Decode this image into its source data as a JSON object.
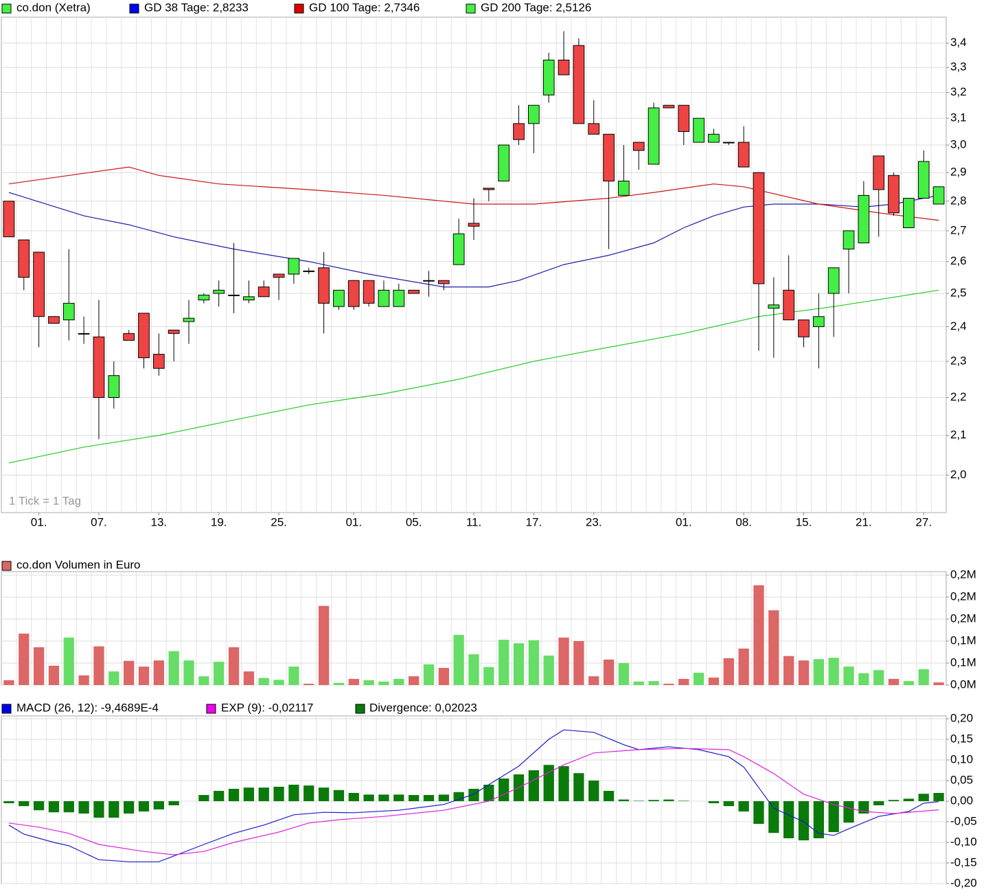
{
  "chart_data": [
    {
      "type": "candlestick",
      "legend": "co.don (Xetra)",
      "legend_color": "#44ee44",
      "up_color": "#44ee44",
      "down_color": "#ee4444",
      "annotation": "1 Tick = 1 Tag",
      "log": true,
      "grid": true,
      "open": [
        2.8,
        2.67,
        2.63,
        2.43,
        2.42,
        2.38,
        2.37,
        2.2,
        2.38,
        2.44,
        2.32,
        2.39,
        2.415,
        2.48,
        2.5,
        2.495,
        2.48,
        2.52,
        2.56,
        2.56,
        2.57,
        2.58,
        2.46,
        2.54,
        2.54,
        2.46,
        2.46,
        2.51,
        2.54,
        2.54,
        2.59,
        2.725,
        2.845,
        2.87,
        3.08,
        3.08,
        3.19,
        3.33,
        3.39,
        3.08,
        3.04,
        2.82,
        3.01,
        2.93,
        3.15,
        3.15,
        3.01,
        3.01,
        3.01,
        3.01,
        2.9,
        2.455,
        2.51,
        2.42,
        2.4,
        2.5,
        2.64,
        2.66,
        2.96,
        2.89,
        2.71,
        2.81,
        2.79
      ],
      "high": [
        2.8,
        2.67,
        2.63,
        2.43,
        2.64,
        2.43,
        2.48,
        2.3,
        2.39,
        2.44,
        2.38,
        2.39,
        2.48,
        2.5,
        2.54,
        2.66,
        2.54,
        2.54,
        2.56,
        2.61,
        2.58,
        2.63,
        2.51,
        2.54,
        2.54,
        2.54,
        2.53,
        2.51,
        2.57,
        2.54,
        2.74,
        2.81,
        2.845,
        3.0,
        3.15,
        3.15,
        3.36,
        3.45,
        3.42,
        3.17,
        3.04,
        3.0,
        3.01,
        3.16,
        3.15,
        3.15,
        3.1,
        3.06,
        3.01,
        3.07,
        2.9,
        2.55,
        2.62,
        2.42,
        2.5,
        2.58,
        2.7,
        2.87,
        2.96,
        2.9,
        2.81,
        2.98,
        2.85
      ],
      "low": [
        2.68,
        2.51,
        2.34,
        2.41,
        2.36,
        2.35,
        2.09,
        2.17,
        2.36,
        2.28,
        2.26,
        2.3,
        2.35,
        2.47,
        2.46,
        2.44,
        2.47,
        2.49,
        2.48,
        2.53,
        2.56,
        2.38,
        2.45,
        2.45,
        2.46,
        2.46,
        2.46,
        2.5,
        2.49,
        2.51,
        2.59,
        2.67,
        2.8,
        2.87,
        3.0,
        2.97,
        3.16,
        3.27,
        3.08,
        3.04,
        2.64,
        2.82,
        2.91,
        2.93,
        3.14,
        3.0,
        3.01,
        3.01,
        3.0,
        2.92,
        2.33,
        2.31,
        2.42,
        2.34,
        2.28,
        2.37,
        2.5,
        2.66,
        2.68,
        2.75,
        2.71,
        2.81,
        2.79
      ],
      "close": [
        2.68,
        2.55,
        2.43,
        2.41,
        2.47,
        2.38,
        2.2,
        2.26,
        2.36,
        2.31,
        2.28,
        2.38,
        2.425,
        2.495,
        2.51,
        2.495,
        2.49,
        2.49,
        2.55,
        2.61,
        2.57,
        2.47,
        2.51,
        2.46,
        2.47,
        2.51,
        2.51,
        2.5,
        2.54,
        2.53,
        2.69,
        2.715,
        2.84,
        3.0,
        3.02,
        3.15,
        3.33,
        3.27,
        3.08,
        3.04,
        2.87,
        2.87,
        2.98,
        3.14,
        3.14,
        3.05,
        3.1,
        3.04,
        3.01,
        2.92,
        2.53,
        2.465,
        2.42,
        2.37,
        2.43,
        2.58,
        2.7,
        2.82,
        2.84,
        2.76,
        2.81,
        2.94,
        2.85
      ],
      "series": [
        {
          "name": "GD 38 Tage: 2,8233",
          "color": "#1c1ca8",
          "legend_color": "#0000ee",
          "x": [
            0,
            5,
            8,
            11,
            15,
            20,
            24,
            29,
            32,
            34,
            37,
            40,
            43,
            45,
            47,
            49,
            51,
            54,
            57,
            59,
            62
          ],
          "values": [
            2.83,
            2.75,
            2.72,
            2.68,
            2.64,
            2.6,
            2.56,
            2.52,
            2.52,
            2.54,
            2.59,
            2.62,
            2.66,
            2.71,
            2.75,
            2.78,
            2.79,
            2.79,
            2.78,
            2.79,
            2.82
          ]
        },
        {
          "name": "GD 100 Tage: 2,7346",
          "color": "#cc1111",
          "legend_color": "#dd0000",
          "x": [
            0,
            4,
            8,
            10,
            14,
            20,
            25,
            31,
            35,
            40,
            43,
            47,
            49,
            54,
            58,
            62
          ],
          "values": [
            2.86,
            2.89,
            2.92,
            2.89,
            2.86,
            2.84,
            2.82,
            2.79,
            2.79,
            2.81,
            2.83,
            2.86,
            2.85,
            2.79,
            2.76,
            2.735
          ]
        },
        {
          "name": "GD 200 Tage: 2,5126",
          "color": "#22cc22",
          "legend_color": "#44ee44",
          "x": [
            0,
            5,
            10,
            15,
            20,
            25,
            30,
            35,
            40,
            45,
            50,
            55,
            62
          ],
          "values": [
            2.03,
            2.07,
            2.1,
            2.14,
            2.18,
            2.21,
            2.25,
            2.3,
            2.34,
            2.38,
            2.43,
            2.46,
            2.51
          ]
        }
      ],
      "ylim": [
        1.91,
        3.51
      ],
      "yticks": [
        {
          "value": 2.0,
          "label": "2,0"
        },
        {
          "value": 2.1,
          "label": "2,1"
        },
        {
          "value": 2.2,
          "label": "2,2"
        },
        {
          "value": 2.3,
          "label": "2,3"
        },
        {
          "value": 2.4,
          "label": "2,4"
        },
        {
          "value": 2.5,
          "label": "2,5"
        },
        {
          "value": 2.6,
          "label": "2,6"
        },
        {
          "value": 2.7,
          "label": "2,7"
        },
        {
          "value": 2.8,
          "label": "2,8"
        },
        {
          "value": 2.9,
          "label": "2,9"
        },
        {
          "value": 3.0,
          "label": "3,0"
        },
        {
          "value": 3.1,
          "label": "3,1"
        },
        {
          "value": 3.2,
          "label": "3,2"
        },
        {
          "value": 3.3,
          "label": "3,3"
        },
        {
          "value": 3.4,
          "label": "3,4"
        }
      ],
      "xticks": [
        {
          "value": 2,
          "label": "01."
        },
        {
          "value": 6,
          "label": "07."
        },
        {
          "value": 10,
          "label": "13."
        },
        {
          "value": 14,
          "label": "19."
        },
        {
          "value": 18,
          "label": "25."
        },
        {
          "value": 23,
          "label": "01."
        },
        {
          "value": 27,
          "label": "05."
        },
        {
          "value": 31,
          "label": "11."
        },
        {
          "value": 35,
          "label": "17."
        },
        {
          "value": 39,
          "label": "23."
        },
        {
          "value": 45,
          "label": "01."
        },
        {
          "value": 49,
          "label": "08."
        },
        {
          "value": 53,
          "label": "15."
        },
        {
          "value": 57,
          "label": "21."
        },
        {
          "value": 61,
          "label": "27."
        }
      ]
    },
    {
      "type": "bar",
      "legend": "co.don Volumen in Euro",
      "legend_color": "#dd6666",
      "grid": true,
      "values": [
        11000,
        117000,
        86000,
        44000,
        108000,
        22000,
        88000,
        31000,
        55000,
        42000,
        56000,
        77000,
        56000,
        20000,
        53000,
        86000,
        31000,
        16000,
        12000,
        42000,
        3000,
        180000,
        5000,
        14000,
        11000,
        8000,
        14000,
        20000,
        47000,
        39000,
        114000,
        70000,
        41000,
        103000,
        95000,
        102000,
        67000,
        108000,
        100000,
        20000,
        58000,
        50000,
        8000,
        9000,
        3000,
        14000,
        28000,
        17000,
        61000,
        83000,
        227000,
        170000,
        66000,
        56000,
        59000,
        62000,
        42000,
        27000,
        34000,
        14000,
        9000,
        36000,
        6000
      ],
      "colors": [
        "#dd6666",
        "#dd6666",
        "#dd6666",
        "#dd6666",
        "#66dd66",
        "#dd6666",
        "#dd6666",
        "#66dd66",
        "#dd6666",
        "#dd6666",
        "#dd6666",
        "#66dd66",
        "#66dd66",
        "#66dd66",
        "#66dd66",
        "#dd6666",
        "#dd6666",
        "#66dd66",
        "#66dd66",
        "#66dd66",
        "#dd6666",
        "#dd6666",
        "#66dd66",
        "#dd6666",
        "#66dd66",
        "#66dd66",
        "#66dd66",
        "#dd6666",
        "#66dd66",
        "#dd6666",
        "#66dd66",
        "#66dd66",
        "#66dd66",
        "#66dd66",
        "#66dd66",
        "#66dd66",
        "#66dd66",
        "#dd6666",
        "#dd6666",
        "#dd6666",
        "#dd6666",
        "#66dd66",
        "#66dd66",
        "#66dd66",
        "#dd6666",
        "#dd6666",
        "#66dd66",
        "#dd6666",
        "#dd6666",
        "#dd6666",
        "#dd6666",
        "#dd6666",
        "#dd6666",
        "#dd6666",
        "#66dd66",
        "#66dd66",
        "#66dd66",
        "#66dd66",
        "#66dd66",
        "#dd6666",
        "#66dd66",
        "#66dd66",
        "#dd6666"
      ],
      "ylim": [
        0,
        250000
      ],
      "yticks": [
        {
          "value": 0,
          "label": "0,0M"
        },
        {
          "value": 50000,
          "label": "0,1M"
        },
        {
          "value": 100000,
          "label": "0,1M"
        },
        {
          "value": 150000,
          "label": "0,2M"
        },
        {
          "value": 200000,
          "label": "0,2M"
        },
        {
          "value": 250000,
          "label": "0,2M"
        }
      ]
    },
    {
      "type": "combo",
      "grid": true,
      "series": [
        {
          "name": "MACD (26, 12): -9,4689E-4",
          "type": "line",
          "color": "#1c1cc8",
          "legend_color": "#0000ee",
          "x": [
            0,
            1,
            3,
            4,
            5,
            6,
            8,
            10,
            11,
            13,
            15,
            17,
            19,
            21,
            23,
            26,
            29,
            31,
            32,
            34,
            36,
            37,
            39,
            41,
            42,
            44,
            46,
            48,
            49,
            50,
            51,
            53,
            54,
            55,
            56,
            58,
            60,
            61,
            62
          ],
          "values": [
            -0.058,
            -0.08,
            -0.1,
            -0.108,
            -0.125,
            -0.142,
            -0.147,
            -0.147,
            -0.133,
            -0.105,
            -0.078,
            -0.058,
            -0.033,
            -0.027,
            -0.028,
            -0.022,
            -0.008,
            0.017,
            0.04,
            0.085,
            0.15,
            0.173,
            0.167,
            0.137,
            0.125,
            0.132,
            0.125,
            0.108,
            0.083,
            0.033,
            -0.017,
            -0.05,
            -0.078,
            -0.083,
            -0.067,
            -0.037,
            -0.025,
            -0.005,
            -0.001
          ]
        },
        {
          "name": "EXP (9): -0,02117",
          "type": "line",
          "color": "#dd22dd",
          "legend_color": "#ee00ee",
          "x": [
            0,
            2,
            4,
            6,
            9,
            11,
            13,
            15,
            18,
            20,
            22,
            25,
            29,
            32,
            34,
            37,
            39,
            42,
            45,
            48,
            49,
            51,
            53,
            55,
            57,
            59,
            62
          ],
          "values": [
            -0.053,
            -0.063,
            -0.078,
            -0.105,
            -0.122,
            -0.13,
            -0.122,
            -0.1,
            -0.075,
            -0.053,
            -0.045,
            -0.037,
            -0.022,
            0.0,
            0.033,
            0.088,
            0.117,
            0.125,
            0.128,
            0.125,
            0.108,
            0.067,
            0.017,
            -0.008,
            -0.025,
            -0.03,
            -0.021
          ]
        },
        {
          "name": "Divergence: 0,02023",
          "type": "bar",
          "color": "#0a7a0a",
          "legend_color": "#0a7a0a",
          "values": [
            -0.005,
            -0.012,
            -0.022,
            -0.027,
            -0.027,
            -0.03,
            -0.04,
            -0.04,
            -0.03,
            -0.025,
            -0.02,
            -0.01,
            0,
            0.015,
            0.025,
            0.03,
            0.033,
            0.033,
            0.035,
            0.04,
            0.038,
            0.033,
            0.027,
            0.02,
            0.016,
            0.016,
            0.016,
            0.015,
            0.015,
            0.016,
            0.022,
            0.03,
            0.04,
            0.055,
            0.065,
            0.075,
            0.088,
            0.085,
            0.068,
            0.05,
            0.025,
            0.004,
            0.001,
            0.003,
            0.004,
            0.001,
            0,
            -0.005,
            -0.012,
            -0.025,
            -0.055,
            -0.077,
            -0.09,
            -0.095,
            -0.09,
            -0.075,
            -0.052,
            -0.03,
            -0.01,
            0.003,
            0.006,
            0.018,
            0.02
          ]
        }
      ],
      "ylim": [
        -0.2,
        0.2
      ],
      "yticks": [
        {
          "value": -0.2,
          "label": "-0,20"
        },
        {
          "value": -0.15,
          "label": "-0,15"
        },
        {
          "value": -0.1,
          "label": "-0,10"
        },
        {
          "value": -0.05,
          "label": "-0,05"
        },
        {
          "value": 0,
          "label": "0,00"
        },
        {
          "value": 0.05,
          "label": "0,05"
        },
        {
          "value": 0.1,
          "label": "0,10"
        },
        {
          "value": 0.15,
          "label": "0,15"
        },
        {
          "value": 0.2,
          "label": "0,20"
        }
      ]
    }
  ]
}
